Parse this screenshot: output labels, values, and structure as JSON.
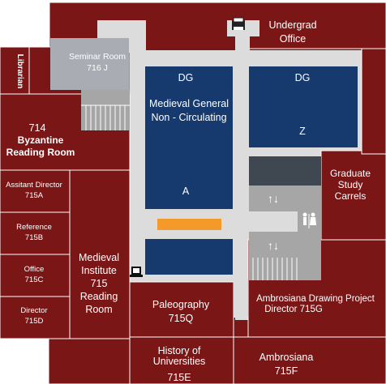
{
  "colors": {
    "room": "#7a1616",
    "stacks": "#173a6e",
    "hallway": "#dcdcdc",
    "seminar": "#a9adb3",
    "elevator": "#a6a6a6",
    "dark_block": "#3f4750",
    "orange_bar": "#f39a2b",
    "white": "#ffffff"
  },
  "rooms": {
    "undergrad_office": [
      "Undergrad",
      "Office"
    ],
    "librarian": "Librarian",
    "seminar_room": [
      "Seminar Room",
      "716 J"
    ],
    "byzantine": [
      "714",
      "Byzantine",
      "Reading Room"
    ],
    "assistant_director": [
      "Assitant Director",
      "715A"
    ],
    "reference": [
      "Reference",
      "715B"
    ],
    "office": [
      "Office",
      "715C"
    ],
    "director": [
      "Director",
      "715D"
    ],
    "medieval_institute": [
      "Medieval",
      "Institute",
      "715",
      "Reading",
      "Room"
    ],
    "paleography": [
      "Paleography",
      "715Q"
    ],
    "history": [
      "History of",
      "Universities",
      "715E"
    ],
    "ambrosiana": [
      "Ambrosiana",
      "715F"
    ],
    "ambrosiana_drawing": [
      "Ambrosiana Drawing Project",
      "Director  715G"
    ],
    "graduate_carrels": [
      "Graduate",
      "Study",
      "Carrels"
    ]
  },
  "stacks": {
    "dg_left": [
      "DG",
      "Medieval General",
      "Non - Circulating",
      "A"
    ],
    "dg_right": [
      "DG",
      "Z"
    ]
  },
  "icons": {
    "elevator_arrows": "↑↓",
    "restroom": "restroom-icon",
    "printer": "printer-icon",
    "computer": "computer-icon"
  }
}
